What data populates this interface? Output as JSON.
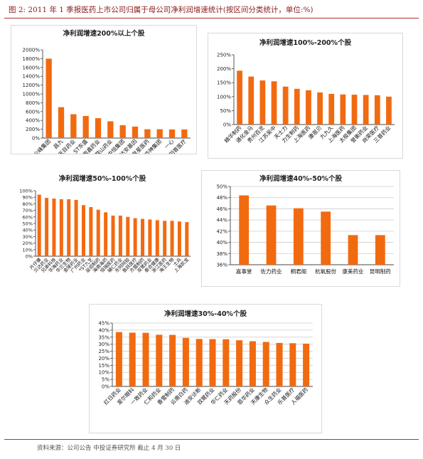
{
  "header": {
    "figure_title": "图 2:  2011 年 1 季报医药上市公司归属于母公司净利润增速统计(按区间分类统计，单位:%)"
  },
  "footer": {
    "source": "资料来源：公司公告  中投证券研究所  截止 4 月 30 日"
  },
  "colors": {
    "bar": "#F26A10",
    "rule": "#b03030",
    "grid": "#cccccc"
  },
  "chart_data": [
    {
      "type": "bar",
      "title": "净利润增速200%以上个股",
      "categories": [
        "尖峰集团",
        "昌九",
        "天目药业",
        "ST东盛",
        "紫鑫药业",
        "鞍山药业",
        "中恒集团",
        "达安基因",
        "复星医药",
        "华神集团",
        "一心",
        "阳普医疗"
      ],
      "values": [
        1800,
        700,
        540,
        500,
        450,
        380,
        290,
        260,
        200,
        200,
        195,
        195
      ],
      "ylim": [
        0,
        2000
      ],
      "yticks": [
        "0%",
        "200%",
        "400%",
        "600%",
        "800%",
        "1000%",
        "1200%",
        "1400%",
        "1600%",
        "1800%",
        "2000%"
      ],
      "grid": false,
      "xlabel": "",
      "ylabel": ""
    },
    {
      "type": "bar",
      "title": "净利润增速100%-200%个股",
      "categories": [
        "精华制药",
        "通化金马",
        "贵州百灵",
        "江苏吴中",
        "天士力",
        "力生制药",
        "上海医药",
        "康恩贝",
        "九九久",
        "上海医药",
        "太极集团",
        "誉衡药业",
        "尚荣医疗",
        "三普药业"
      ],
      "values": [
        193,
        172,
        158,
        155,
        136,
        128,
        123,
        115,
        110,
        108,
        107,
        106,
        105,
        100
      ],
      "ylim": [
        0,
        250
      ],
      "yticks": [
        "0%",
        "50%",
        "100%",
        "150%",
        "200%",
        "250%"
      ],
      "grid": false,
      "xlabel": "",
      "ylabel": ""
    },
    {
      "type": "bar",
      "title": "净利润增速50%-100%个股",
      "categories": [
        "片仔癀",
        "贝达药业",
        "兄弟科技",
        "华海药业",
        "华兰生物",
        "金陵药业",
        "广州药业",
        "*ST九芝",
        "益佰制药",
        "海南海药",
        "恒瑞医药",
        "辅仁药业",
        "东阿阿胶",
        "鱼跃医疗",
        "方盛制药",
        "双鹭药业",
        "泰合健康",
        "浙江医药",
        "海王生物",
        "士兵",
        "上海凯宝"
      ],
      "values": [
        94,
        89,
        88,
        87,
        87,
        86,
        78,
        75,
        71,
        67,
        62,
        62,
        60,
        58,
        57,
        56,
        55,
        54,
        54,
        53,
        52
      ],
      "ylim": [
        0,
        100
      ],
      "yticks": [
        "0%",
        "10%",
        "20%",
        "30%",
        "40%",
        "50%",
        "60%",
        "70%",
        "80%",
        "90%",
        "100%"
      ],
      "grid": false,
      "xlabel": "",
      "ylabel": ""
    },
    {
      "type": "bar",
      "title": "净利润增速40%-50%个股",
      "categories": [
        "嘉事堂",
        "佐力药业",
        "桐君阁",
        "杭氧股份",
        "康美药业",
        "昆明制药"
      ],
      "values": [
        48.4,
        46.6,
        46.1,
        45.5,
        41.3,
        41.3
      ],
      "ylim": [
        36,
        50
      ],
      "yticks": [
        "36%",
        "38%",
        "40%",
        "42%",
        "44%",
        "46%",
        "48%",
        "50%"
      ],
      "grid": true,
      "xlabel": "",
      "ylabel": ""
    },
    {
      "type": "bar",
      "title": "净利润增速30%-40%个股",
      "categories": [
        "红日药业",
        "爱尔眼科",
        "一致药业",
        "仁和药业",
        "香雪制药",
        "云南白药",
        "迪安诊断",
        "双鹭药业",
        "华仁药业",
        "天药股份",
        "恩华药业",
        "天康生物",
        "众生药业",
        "乐普医疗",
        "人福医药"
      ],
      "values": [
        38.6,
        38.2,
        38.1,
        36.7,
        36.6,
        34.5,
        33.7,
        33.6,
        33.5,
        32.8,
        32.1,
        31.6,
        30.9,
        30.7,
        30.4
      ],
      "ylim": [
        0,
        45
      ],
      "yticks": [
        "0%",
        "5%",
        "10%",
        "15%",
        "20%",
        "25%",
        "30%",
        "35%",
        "40%",
        "45%"
      ],
      "grid": true,
      "xlabel": "",
      "ylabel": ""
    }
  ]
}
